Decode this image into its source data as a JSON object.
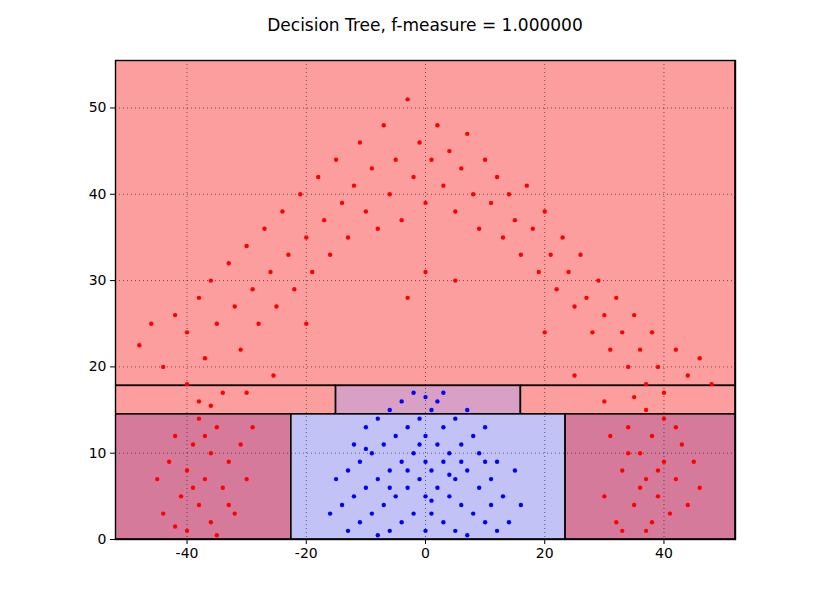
{
  "chart_data": {
    "type": "scatter",
    "title": "Decision Tree, f-measure = 1.000000",
    "xlim": [
      -52,
      52
    ],
    "ylim": [
      0,
      55.5
    ],
    "xticks": [
      -40,
      -20,
      0,
      20,
      40
    ],
    "yticks": [
      0,
      10,
      20,
      30,
      40,
      50
    ],
    "grid": true,
    "regions": [
      {
        "x": [
          -52,
          52
        ],
        "y": [
          17.8,
          55.5
        ],
        "color": "#fd9e9e"
      },
      {
        "x": [
          -52,
          -15
        ],
        "y": [
          14.5,
          17.8
        ],
        "color": "#fd9e9e"
      },
      {
        "x": [
          -15,
          16
        ],
        "y": [
          14.5,
          17.8
        ],
        "color": "#d9a0c5"
      },
      {
        "x": [
          16,
          52
        ],
        "y": [
          14.5,
          17.8
        ],
        "color": "#fd9e9e"
      },
      {
        "x": [
          -52,
          -22.5
        ],
        "y": [
          0,
          14.5
        ],
        "color": "#d67a9c"
      },
      {
        "x": [
          -22.5,
          23.5
        ],
        "y": [
          0,
          14.5
        ],
        "color": "#c2c2f7"
      },
      {
        "x": [
          23.5,
          52
        ],
        "y": [
          0,
          14.5
        ],
        "color": "#d67a9c"
      }
    ],
    "series": [
      {
        "color": "#ff0000",
        "values": [
          [
            -48,
            22.5
          ],
          [
            -46,
            25
          ],
          [
            -44,
            20
          ],
          [
            -42,
            26
          ],
          [
            -40,
            24
          ],
          [
            -40,
            18
          ],
          [
            -38,
            28
          ],
          [
            -37,
            21
          ],
          [
            -36,
            30
          ],
          [
            -35,
            25
          ],
          [
            -34,
            17
          ],
          [
            -33,
            32
          ],
          [
            -32,
            27
          ],
          [
            -31,
            22
          ],
          [
            -30,
            34
          ],
          [
            -29,
            29
          ],
          [
            -28,
            25
          ],
          [
            -27,
            36
          ],
          [
            -26,
            31
          ],
          [
            -25,
            27
          ],
          [
            -24,
            38
          ],
          [
            -23,
            33
          ],
          [
            -22,
            29
          ],
          [
            -21,
            40
          ],
          [
            -20,
            35
          ],
          [
            -19,
            31
          ],
          [
            -18,
            42
          ],
          [
            -17,
            37
          ],
          [
            -16,
            33
          ],
          [
            -15,
            44
          ],
          [
            -14,
            39
          ],
          [
            -13,
            35
          ],
          [
            -12,
            41
          ],
          [
            -11,
            46
          ],
          [
            -10,
            38
          ],
          [
            -9,
            43
          ],
          [
            -8,
            36
          ],
          [
            -7,
            48
          ],
          [
            -6,
            40
          ],
          [
            -5,
            44
          ],
          [
            -4,
            37
          ],
          [
            -3,
            51
          ],
          [
            -2,
            42
          ],
          [
            -1,
            46
          ],
          [
            0,
            39
          ],
          [
            1,
            44
          ],
          [
            2,
            48
          ],
          [
            3,
            41
          ],
          [
            4,
            45
          ],
          [
            5,
            38
          ],
          [
            6,
            43
          ],
          [
            7,
            47
          ],
          [
            8,
            40
          ],
          [
            9,
            36
          ],
          [
            10,
            44
          ],
          [
            11,
            39
          ],
          [
            12,
            42
          ],
          [
            13,
            35
          ],
          [
            14,
            40
          ],
          [
            15,
            37
          ],
          [
            16,
            33
          ],
          [
            17,
            41
          ],
          [
            18,
            36
          ],
          [
            19,
            31
          ],
          [
            20,
            38
          ],
          [
            21,
            33
          ],
          [
            22,
            29
          ],
          [
            23,
            35
          ],
          [
            24,
            31
          ],
          [
            25,
            27
          ],
          [
            26,
            33
          ],
          [
            27,
            28
          ],
          [
            28,
            24
          ],
          [
            29,
            30
          ],
          [
            30,
            26
          ],
          [
            31,
            22
          ],
          [
            32,
            28
          ],
          [
            33,
            24
          ],
          [
            34,
            20
          ],
          [
            35,
            26
          ],
          [
            36,
            22
          ],
          [
            37,
            18
          ],
          [
            38,
            24
          ],
          [
            39,
            20
          ],
          [
            40,
            17
          ],
          [
            42,
            22
          ],
          [
            44,
            19
          ],
          [
            46,
            21
          ],
          [
            48,
            18
          ],
          [
            -25.5,
            19
          ],
          [
            25,
            19
          ],
          [
            -20,
            25
          ],
          [
            20,
            24
          ],
          [
            -30,
            17
          ],
          [
            30,
            16
          ],
          [
            -3,
            28
          ],
          [
            0,
            31
          ],
          [
            5,
            30
          ],
          [
            -38,
            16
          ],
          [
            37,
            15
          ],
          [
            -36,
            15.5
          ],
          [
            35,
            16.5
          ],
          [
            -44,
            3
          ],
          [
            -43,
            9
          ],
          [
            -42,
            12
          ],
          [
            -41,
            5
          ],
          [
            -40,
            1
          ],
          [
            -40,
            8
          ],
          [
            -39,
            11
          ],
          [
            -38,
            4
          ],
          [
            -38,
            14
          ],
          [
            -37,
            7
          ],
          [
            -36,
            2
          ],
          [
            -36,
            10
          ],
          [
            -35,
            13
          ],
          [
            -34,
            6
          ],
          [
            -33,
            9
          ],
          [
            -32,
            3
          ],
          [
            -31,
            11
          ],
          [
            -30,
            7
          ],
          [
            -42,
            1.5
          ],
          [
            -39,
            6
          ],
          [
            -37,
            12
          ],
          [
            -35,
            0.5
          ],
          [
            -33,
            4
          ],
          [
            -29,
            13
          ],
          [
            -45,
            7
          ],
          [
            30,
            5
          ],
          [
            31,
            12
          ],
          [
            32,
            2
          ],
          [
            33,
            8
          ],
          [
            34,
            13
          ],
          [
            35,
            4
          ],
          [
            36,
            10
          ],
          [
            37,
            1
          ],
          [
            37,
            7
          ],
          [
            38,
            12
          ],
          [
            39,
            5
          ],
          [
            40,
            9
          ],
          [
            40,
            14
          ],
          [
            41,
            3
          ],
          [
            42,
            7
          ],
          [
            43,
            11
          ],
          [
            44,
            4
          ],
          [
            45,
            9
          ],
          [
            36,
            6
          ],
          [
            38,
            2
          ],
          [
            34,
            10
          ],
          [
            42,
            13
          ],
          [
            33,
            1
          ],
          [
            46,
            6
          ],
          [
            39,
            8
          ]
        ]
      },
      {
        "color": "#0000ff",
        "values": [
          [
            -14,
            4
          ],
          [
            -13,
            8
          ],
          [
            -13,
            1
          ],
          [
            -12,
            11
          ],
          [
            -12,
            5
          ],
          [
            -11,
            2
          ],
          [
            -11,
            9
          ],
          [
            -10,
            13
          ],
          [
            -10,
            6
          ],
          [
            -9,
            3
          ],
          [
            -9,
            10
          ],
          [
            -8,
            0.5
          ],
          [
            -8,
            7
          ],
          [
            -8,
            14
          ],
          [
            -7,
            4
          ],
          [
            -7,
            11
          ],
          [
            -6,
            1
          ],
          [
            -6,
            8
          ],
          [
            -6,
            15
          ],
          [
            -5,
            5
          ],
          [
            -5,
            12
          ],
          [
            -4,
            2
          ],
          [
            -4,
            9
          ],
          [
            -4,
            16
          ],
          [
            -3,
            6
          ],
          [
            -3,
            13
          ],
          [
            -2,
            3
          ],
          [
            -2,
            10
          ],
          [
            -2,
            17
          ],
          [
            -1,
            7
          ],
          [
            -1,
            14
          ],
          [
            0,
            1
          ],
          [
            0,
            5
          ],
          [
            0,
            9
          ],
          [
            0,
            12
          ],
          [
            1,
            3
          ],
          [
            1,
            8
          ],
          [
            1,
            15
          ],
          [
            2,
            6
          ],
          [
            2,
            11
          ],
          [
            3,
            2
          ],
          [
            3,
            9
          ],
          [
            3,
            13
          ],
          [
            4,
            5
          ],
          [
            4,
            10
          ],
          [
            5,
            1
          ],
          [
            5,
            7
          ],
          [
            5,
            14
          ],
          [
            6,
            4
          ],
          [
            6,
            11
          ],
          [
            7,
            0.5
          ],
          [
            7,
            8
          ],
          [
            7,
            15
          ],
          [
            8,
            3
          ],
          [
            8,
            12
          ],
          [
            9,
            6
          ],
          [
            9,
            10
          ],
          [
            10,
            2
          ],
          [
            10,
            13
          ],
          [
            11,
            7
          ],
          [
            11,
            4
          ],
          [
            12,
            9
          ],
          [
            12,
            1
          ],
          [
            13,
            5
          ],
          [
            14,
            2
          ],
          [
            15,
            8
          ],
          [
            -15,
            7
          ],
          [
            -16,
            3
          ],
          [
            16,
            4
          ],
          [
            2,
            16
          ],
          [
            -1,
            11
          ],
          [
            1,
            4.5
          ],
          [
            -3,
            8
          ],
          [
            4,
            7.5
          ],
          [
            -6,
            6
          ],
          [
            6,
            9
          ],
          [
            -10,
            10.5
          ],
          [
            10,
            9
          ],
          [
            0,
            16.5
          ],
          [
            3,
            17
          ]
        ]
      }
    ]
  }
}
